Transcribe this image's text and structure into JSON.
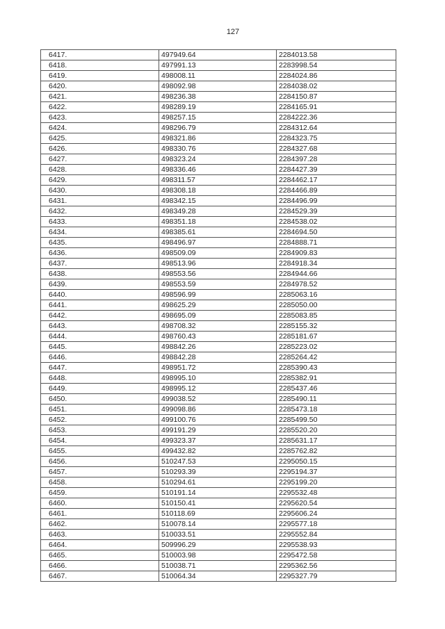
{
  "page_number": "127",
  "rows": [
    [
      "6417.",
      "497949.64",
      "2284013.58"
    ],
    [
      "6418.",
      "497991.13",
      "2283998.54"
    ],
    [
      "6419.",
      "498008.11",
      "2284024.86"
    ],
    [
      "6420.",
      "498092.98",
      "2284038.02"
    ],
    [
      "6421.",
      "498236.38",
      "2284150.87"
    ],
    [
      "6422.",
      "498289.19",
      "2284165.91"
    ],
    [
      "6423.",
      "498257.15",
      "2284222.36"
    ],
    [
      "6424.",
      "498296.79",
      "2284312.64"
    ],
    [
      "6425.",
      "498321.86",
      "2284323.75"
    ],
    [
      "6426.",
      "498330.76",
      "2284327.68"
    ],
    [
      "6427.",
      "498323.24",
      "2284397.28"
    ],
    [
      "6428.",
      "498336.46",
      "2284427.39"
    ],
    [
      "6429.",
      "498311.57",
      "2284462.17"
    ],
    [
      "6430.",
      "498308.18",
      "2284466.89"
    ],
    [
      "6431.",
      "498342.15",
      "2284496.99"
    ],
    [
      "6432.",
      "498349.28",
      "2284529.39"
    ],
    [
      "6433.",
      "498351.18",
      "2284538.02"
    ],
    [
      "6434.",
      "498385.61",
      "2284694.50"
    ],
    [
      "6435.",
      "498496.97",
      "2284888.71"
    ],
    [
      "6436.",
      "498509.09",
      "2284909.83"
    ],
    [
      "6437.",
      "498513.96",
      "2284918.34"
    ],
    [
      "6438.",
      "498553.56",
      "2284944.66"
    ],
    [
      "6439.",
      "498553.59",
      "2284978.52"
    ],
    [
      "6440.",
      "498596.99",
      "2285063.16"
    ],
    [
      "6441.",
      "498625.29",
      "2285050.00"
    ],
    [
      "6442.",
      "498695.09",
      "2285083.85"
    ],
    [
      "6443.",
      "498708.32",
      "2285155.32"
    ],
    [
      "6444.",
      "498760.43",
      "2285181.67"
    ],
    [
      "6445.",
      "498842.26",
      "2285223.02"
    ],
    [
      "6446.",
      "498842.28",
      "2285264.42"
    ],
    [
      "6447.",
      "498951.72",
      "2285390.43"
    ],
    [
      "6448.",
      "498995.10",
      "2285382.91"
    ],
    [
      "6449.",
      "498995.12",
      "2285437.46"
    ],
    [
      "6450.",
      "499038.52",
      "2285490.11"
    ],
    [
      "6451.",
      "499098.86",
      "2285473.18"
    ],
    [
      "6452.",
      "499100.76",
      "2285499.50"
    ],
    [
      "6453.",
      "499191.29",
      "2285520.20"
    ],
    [
      "6454.",
      "499323.37",
      "2285631.17"
    ],
    [
      "6455.",
      "499432.82",
      "2285762.82"
    ],
    [
      "6456.",
      "510247.53",
      "2295050.15"
    ],
    [
      "6457.",
      "510293.39",
      "2295194.37"
    ],
    [
      "6458.",
      "510294.61",
      "2295199.20"
    ],
    [
      "6459.",
      "510191.14",
      "2295532.48"
    ],
    [
      "6460.",
      "510150.41",
      "2295620.54"
    ],
    [
      "6461.",
      "510118.69",
      "2295606.24"
    ],
    [
      "6462.",
      "510078.14",
      "2295577.18"
    ],
    [
      "6463.",
      "510033.51",
      "2295552.84"
    ],
    [
      "6464.",
      "509996.29",
      "2295538.93"
    ],
    [
      "6465.",
      "510003.98",
      "2295472.58"
    ],
    [
      "6466.",
      "510038.71",
      "2295362.56"
    ],
    [
      "6467.",
      "510064.34",
      "2295327.79"
    ]
  ]
}
